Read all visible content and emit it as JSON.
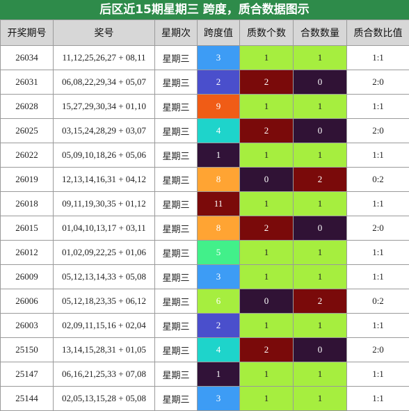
{
  "title": "后区近15期星期三 跨度，质合数据图示",
  "headers": [
    "开奖期号",
    "奖号",
    "星期次",
    "跨度值",
    "质数个数",
    "合数数量",
    "质合数比值"
  ],
  "colors": {
    "title_bg": "#2e8b4a",
    "header_bg": "#d7d7d7",
    "green": "#a6ee3f",
    "dark_red": "#7a0a0a",
    "dark_purple": "#301235",
    "span": {
      "1": "#311238",
      "2": "#4a4fcc",
      "3": "#3d9cf5",
      "4": "#1ed4cb",
      "5": "#42f08a",
      "6": "#a6ee3f",
      "8": "#ffa433",
      "9": "#f05c16",
      "11": "#7b0a0a"
    }
  },
  "rows": [
    {
      "period": "26034",
      "numbers": "11,12,25,26,27 + 08,11",
      "weekday": "星期三",
      "span": "3",
      "prime": "1",
      "composite": "1",
      "ratio": "1:1"
    },
    {
      "period": "26031",
      "numbers": "06,08,22,29,34 + 05,07",
      "weekday": "星期三",
      "span": "2",
      "prime": "2",
      "composite": "0",
      "ratio": "2:0"
    },
    {
      "period": "26028",
      "numbers": "15,27,29,30,34 + 01,10",
      "weekday": "星期三",
      "span": "9",
      "prime": "1",
      "composite": "1",
      "ratio": "1:1"
    },
    {
      "period": "26025",
      "numbers": "03,15,24,28,29 + 03,07",
      "weekday": "星期三",
      "span": "4",
      "prime": "2",
      "composite": "0",
      "ratio": "2:0"
    },
    {
      "period": "26022",
      "numbers": "05,09,10,18,26 + 05,06",
      "weekday": "星期三",
      "span": "1",
      "prime": "1",
      "composite": "1",
      "ratio": "1:1"
    },
    {
      "period": "26019",
      "numbers": "12,13,14,16,31 + 04,12",
      "weekday": "星期三",
      "span": "8",
      "prime": "0",
      "composite": "2",
      "ratio": "0:2"
    },
    {
      "period": "26018",
      "numbers": "09,11,19,30,35 + 01,12",
      "weekday": "星期三",
      "span": "11",
      "prime": "1",
      "composite": "1",
      "ratio": "1:1"
    },
    {
      "period": "26015",
      "numbers": "01,04,10,13,17 + 03,11",
      "weekday": "星期三",
      "span": "8",
      "prime": "2",
      "composite": "0",
      "ratio": "2:0"
    },
    {
      "period": "26012",
      "numbers": "01,02,09,22,25 + 01,06",
      "weekday": "星期三",
      "span": "5",
      "prime": "1",
      "composite": "1",
      "ratio": "1:1"
    },
    {
      "period": "26009",
      "numbers": "05,12,13,14,33 + 05,08",
      "weekday": "星期三",
      "span": "3",
      "prime": "1",
      "composite": "1",
      "ratio": "1:1"
    },
    {
      "period": "26006",
      "numbers": "05,12,18,23,35 + 06,12",
      "weekday": "星期三",
      "span": "6",
      "prime": "0",
      "composite": "2",
      "ratio": "0:2"
    },
    {
      "period": "26003",
      "numbers": "02,09,11,15,16 + 02,04",
      "weekday": "星期三",
      "span": "2",
      "prime": "1",
      "composite": "1",
      "ratio": "1:1"
    },
    {
      "period": "25150",
      "numbers": "13,14,15,28,31 + 01,05",
      "weekday": "星期三",
      "span": "4",
      "prime": "2",
      "composite": "0",
      "ratio": "2:0"
    },
    {
      "period": "25147",
      "numbers": "06,16,21,25,33 + 07,08",
      "weekday": "星期三",
      "span": "1",
      "prime": "1",
      "composite": "1",
      "ratio": "1:1"
    },
    {
      "period": "25144",
      "numbers": "02,05,13,15,28 + 05,08",
      "weekday": "星期三",
      "span": "3",
      "prime": "1",
      "composite": "1",
      "ratio": "1:1"
    }
  ]
}
